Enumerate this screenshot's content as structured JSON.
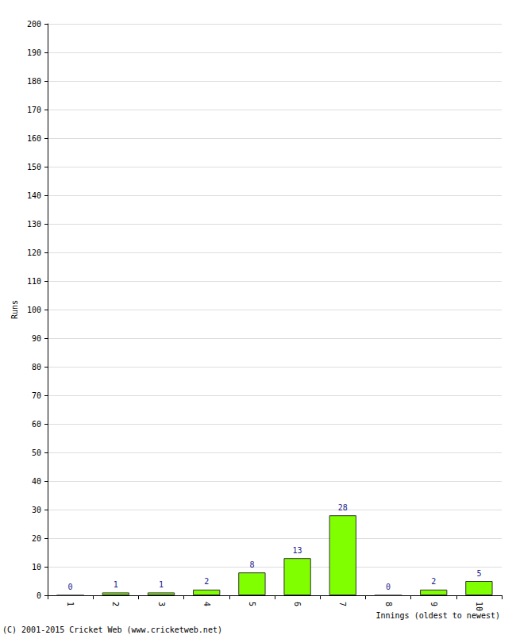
{
  "chart_data": {
    "type": "bar",
    "categories": [
      "1",
      "2",
      "3",
      "4",
      "5",
      "6",
      "7",
      "8",
      "9",
      "10"
    ],
    "values": [
      0,
      1,
      1,
      2,
      8,
      13,
      28,
      0,
      2,
      5
    ],
    "color": "#80ff00",
    "ylim": [
      0,
      200
    ],
    "yticks": [
      0,
      10,
      20,
      30,
      40,
      50,
      60,
      70,
      80,
      90,
      100,
      110,
      120,
      130,
      140,
      150,
      160,
      170,
      180,
      190,
      200
    ],
    "grid": true,
    "data_labels": true,
    "xlabel": "Innings (oldest to newest)",
    "ylabel": "Runs",
    "annotations": [
      "(C) 2001-2015 Cricket Web (www.cricketweb.net)"
    ]
  }
}
